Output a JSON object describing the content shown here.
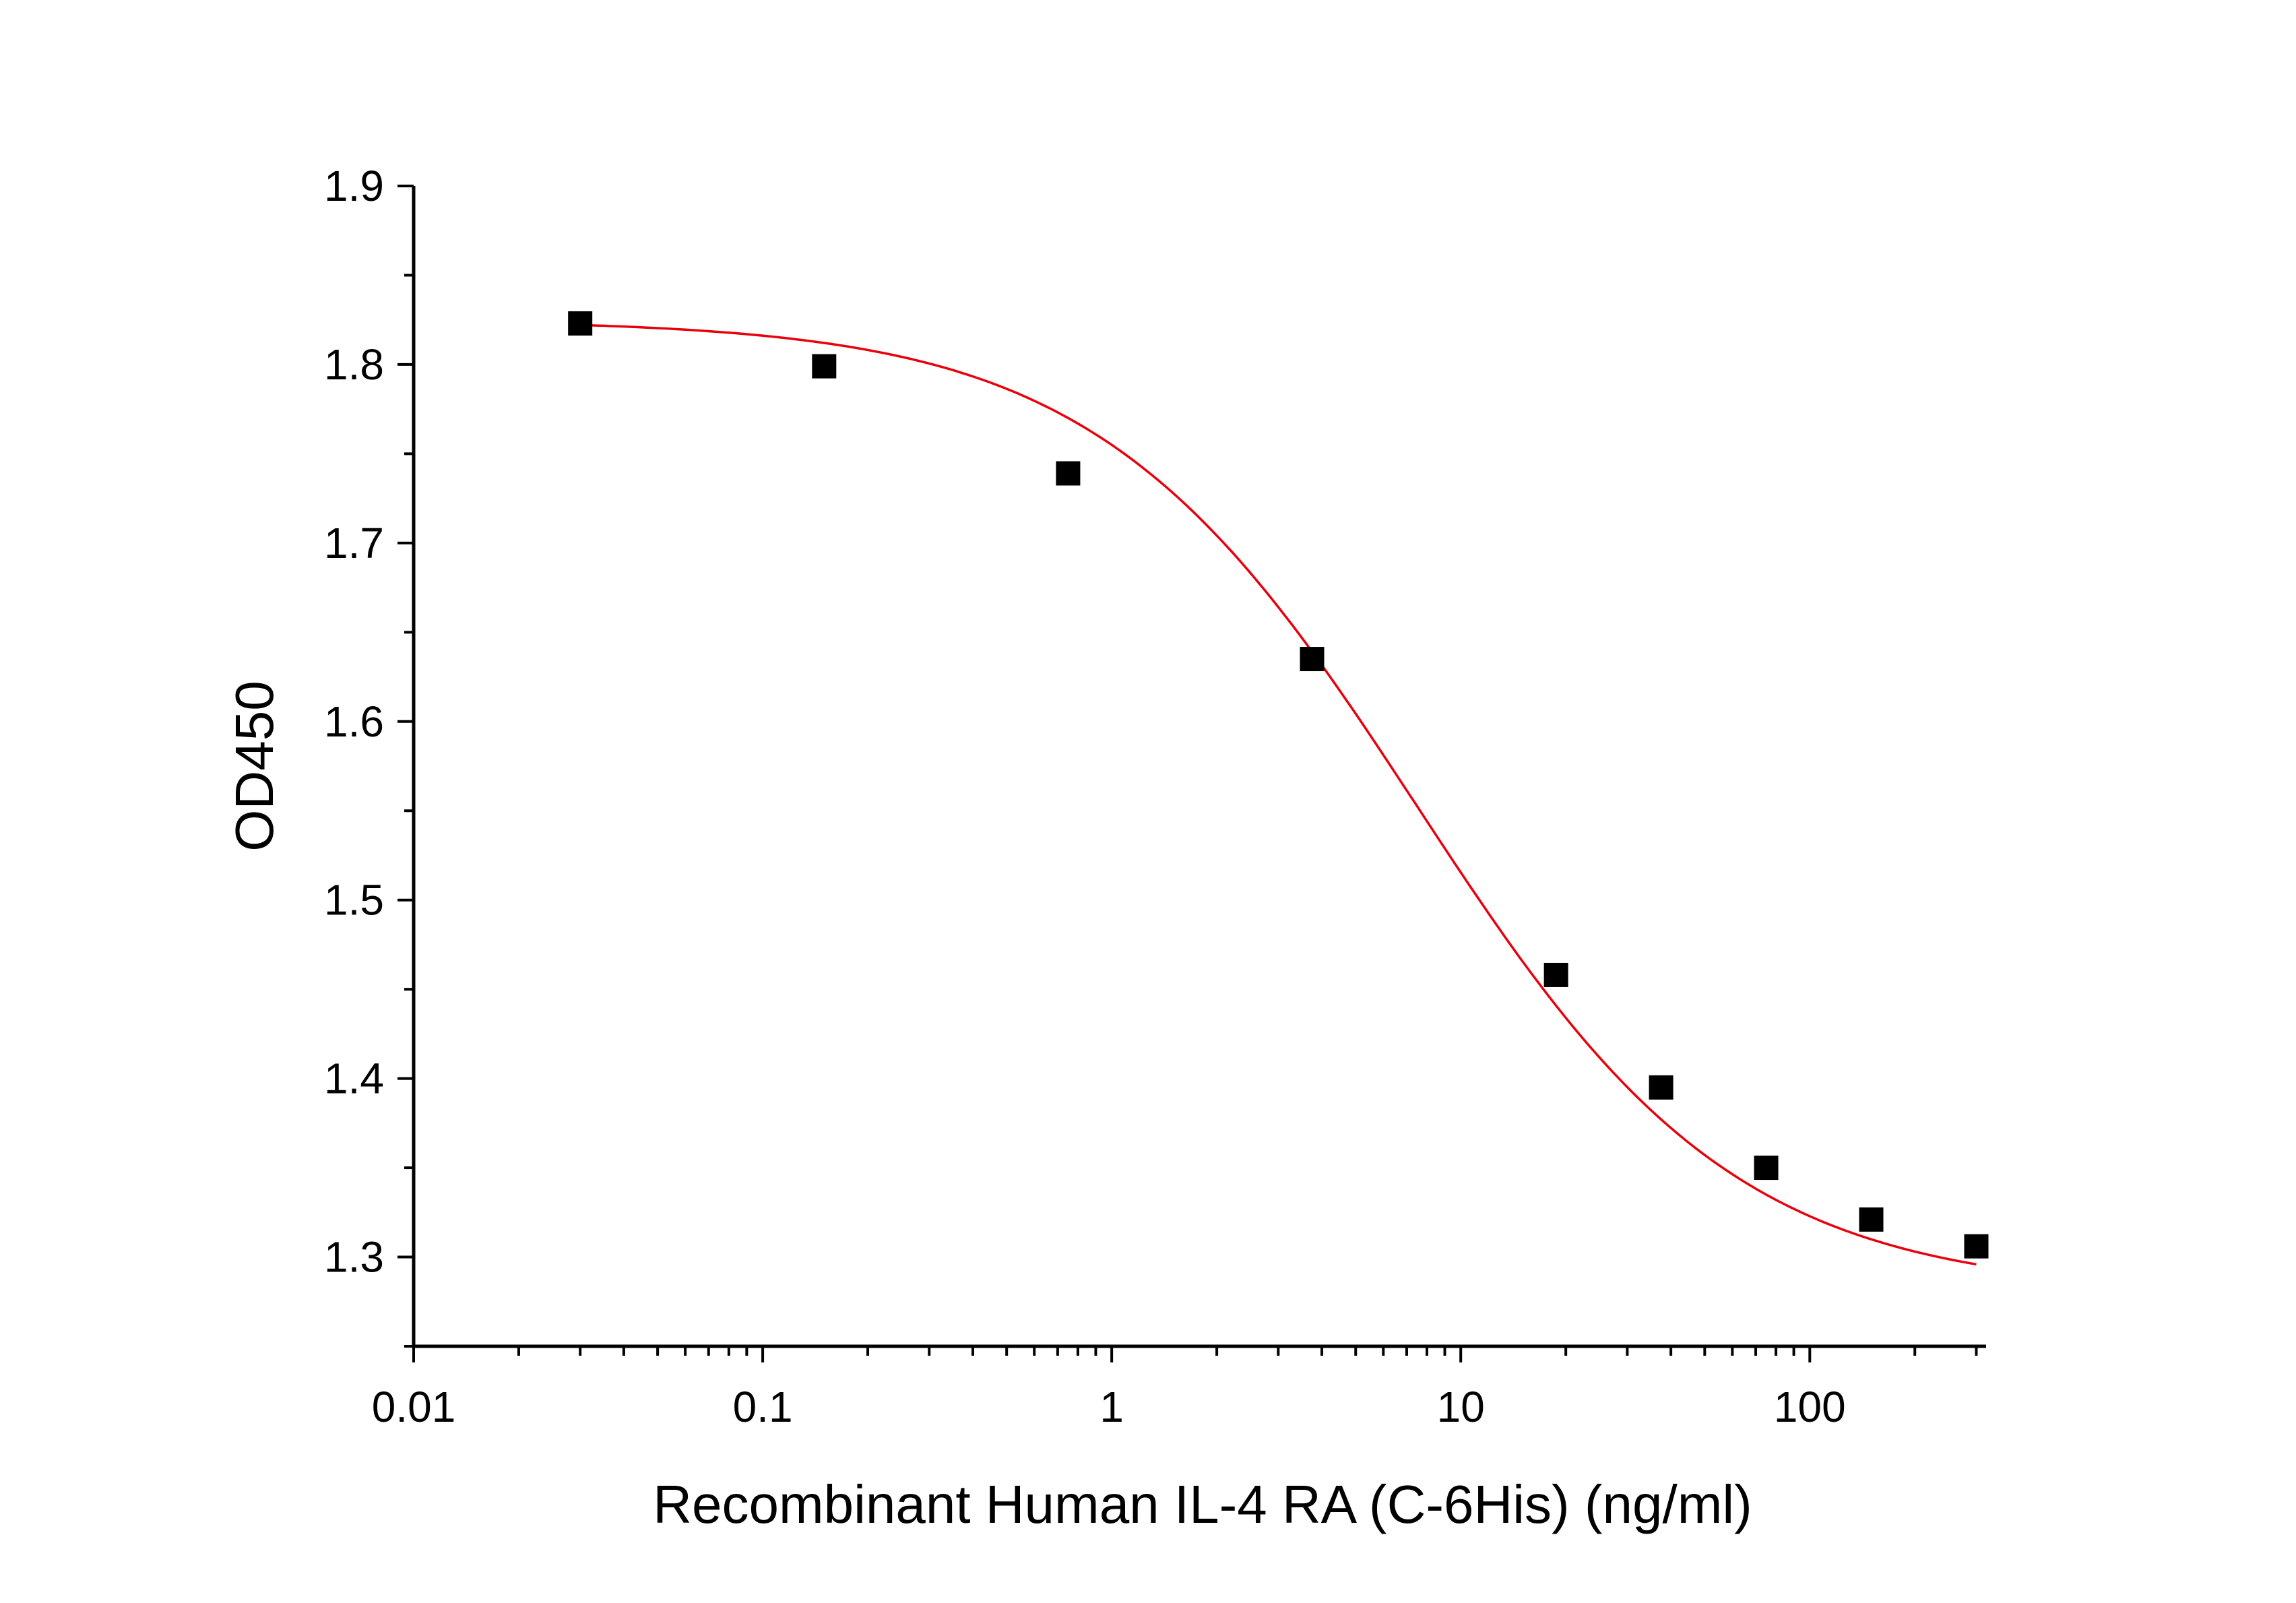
{
  "chart_data": {
    "type": "scatter",
    "xlabel": "Recombinant Human IL-4 RA (C-6His) (ng/ml)",
    "ylabel": "OD450",
    "x_scale": "log",
    "xlim": [
      0.01,
      320
    ],
    "ylim": [
      1.25,
      1.9
    ],
    "x_ticks": [
      "0.01",
      "0.1",
      "1",
      "10",
      "100"
    ],
    "y_ticks": [
      "1.3",
      "1.4",
      "1.5",
      "1.6",
      "1.7",
      "1.8",
      "1.9"
    ],
    "grid": false,
    "series": [
      {
        "marker": "square",
        "color": "#000000",
        "x": [
          0.03,
          0.15,
          0.75,
          3.75,
          18.75,
          37.5,
          75,
          150,
          300
        ],
        "y": [
          1.823,
          1.799,
          1.739,
          1.635,
          1.458,
          1.395,
          1.35,
          1.321,
          1.306
        ]
      }
    ],
    "fit": {
      "type": "4PL",
      "color": "#e8000b",
      "top": 1.825,
      "bottom": 1.28,
      "ec50": 7.5,
      "hill": 0.95
    }
  }
}
